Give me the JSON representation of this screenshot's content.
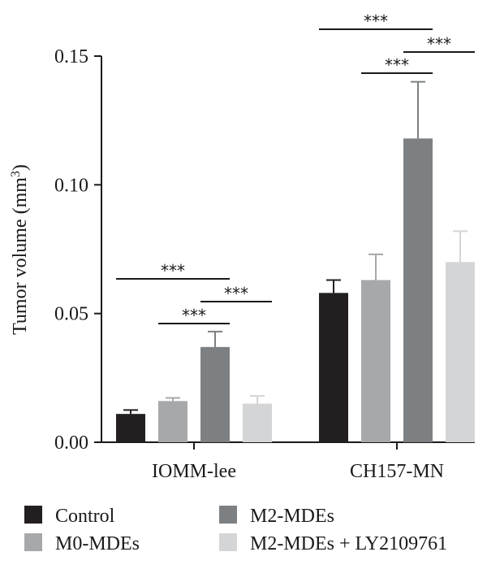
{
  "chart_data": {
    "type": "bar",
    "categories": [
      "IOMM-lee",
      "CH157-MN"
    ],
    "series": [
      {
        "name": "Control",
        "color": "#231f20",
        "values": [
          0.011,
          0.058
        ],
        "errors": [
          0.0015,
          0.005
        ]
      },
      {
        "name": "M0-MDEs",
        "color": "#a6a8aa",
        "values": [
          0.016,
          0.063
        ],
        "errors": [
          0.0012,
          0.01
        ]
      },
      {
        "name": "M2-MDEs",
        "color": "#7d8082",
        "values": [
          0.037,
          0.118
        ],
        "errors": [
          0.006,
          0.022
        ]
      },
      {
        "name": "M2-MDEs + LY2109761",
        "color": "#d4d5d6",
        "values": [
          0.015,
          0.07
        ],
        "errors": [
          0.003,
          0.012
        ]
      }
    ],
    "ylabel": "Tumor volume (mm",
    "ylabel_superscript": "3",
    "ylabel_suffix": ")",
    "ylim": [
      0,
      0.15
    ],
    "yticks": [
      "0.00",
      "0.05",
      "0.10",
      "0.15"
    ],
    "grid": false,
    "legend_position": "bottom",
    "significance": [
      {
        "category": 0,
        "from": 0,
        "to": 2,
        "label": "***"
      },
      {
        "category": 0,
        "from": 1,
        "to": 2,
        "label": "***"
      },
      {
        "category": 0,
        "from": 2,
        "to": 3,
        "label": "***"
      },
      {
        "category": 1,
        "from": 0,
        "to": 2,
        "label": "***"
      },
      {
        "category": 1,
        "from": 1,
        "to": 2,
        "label": "***"
      },
      {
        "category": 1,
        "from": 2,
        "to": 3,
        "label": "***"
      }
    ]
  }
}
